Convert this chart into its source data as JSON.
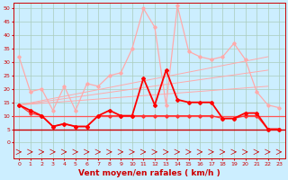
{
  "background_color": "#cceeff",
  "grid_color": "#aaccbb",
  "xlabel": "Vent moyen/en rafales ( km/h )",
  "xlim": [
    -0.5,
    23.5
  ],
  "ylim": [
    0,
    52
  ],
  "yticks": [
    0,
    5,
    10,
    15,
    20,
    25,
    30,
    35,
    40,
    45,
    50
  ],
  "xticks": [
    0,
    1,
    2,
    3,
    4,
    5,
    6,
    7,
    8,
    9,
    10,
    11,
    12,
    13,
    14,
    15,
    16,
    17,
    18,
    19,
    20,
    21,
    22,
    23
  ],
  "x": [
    0,
    1,
    2,
    3,
    4,
    5,
    6,
    7,
    8,
    9,
    10,
    11,
    12,
    13,
    14,
    15,
    16,
    17,
    18,
    19,
    20,
    21,
    22,
    23
  ],
  "y_gust": [
    32,
    19,
    20,
    12,
    21,
    12,
    22,
    21,
    25,
    26,
    35,
    50,
    43,
    14,
    51,
    34,
    32,
    31,
    32,
    37,
    31,
    19,
    14,
    13
  ],
  "y_avg": [
    14,
    12,
    10,
    6,
    7,
    6,
    6,
    10,
    12,
    10,
    10,
    24,
    14,
    27,
    16,
    15,
    15,
    15,
    9,
    9,
    11,
    11,
    5,
    5
  ],
  "y_med": [
    14,
    11,
    10,
    6,
    7,
    6,
    6,
    10,
    10,
    10,
    10,
    10,
    10,
    10,
    10,
    10,
    10,
    10,
    9,
    9,
    10,
    10,
    5,
    5
  ],
  "trend1": [
    14,
    32
  ],
  "trend2": [
    14,
    27
  ],
  "trend3": [
    14,
    21
  ],
  "flat1_y": 10,
  "flat2_y": 5,
  "color_gust": "#ffaaaa",
  "color_avg": "#ff0000",
  "color_med": "#ff0000",
  "color_trend": "#ffaaaa",
  "color_flat1": "#ff5555",
  "color_flat2": "#cc0000",
  "color_arrow": "#cc0000",
  "tick_color": "#cc0000",
  "spine_color": "#cc0000",
  "label_color": "#cc0000"
}
